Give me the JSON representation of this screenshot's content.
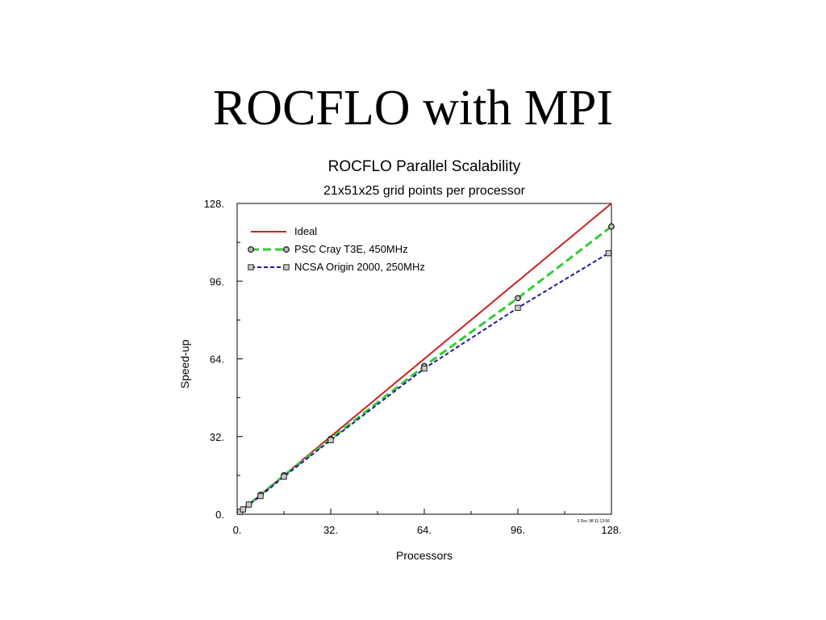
{
  "slide": {
    "title": "ROCFLO with MPI"
  },
  "colors": {
    "ideal": "#cc2222",
    "cray": "#33cc33",
    "origin": "#1a1aa0"
  },
  "chart_data": {
    "type": "line",
    "title": "ROCFLO Parallel Scalability",
    "subtitle": "21x51x25 grid points per processor",
    "xlabel": "Processors",
    "ylabel": "Speed-up",
    "xlim": [
      0,
      128
    ],
    "ylim": [
      0,
      128
    ],
    "x_ticks": [
      "0.",
      "32.",
      "64.",
      "96.",
      "128."
    ],
    "y_ticks": [
      "0.",
      "32.",
      "64.",
      "96.",
      "128."
    ],
    "timestamp": "3 Dec 98 11:13:56",
    "legend_position": "top-left",
    "series": [
      {
        "name": "Ideal",
        "style": "solid",
        "marker": "none",
        "x": [
          0,
          128
        ],
        "y": [
          0,
          128
        ]
      },
      {
        "name": "PSC Cray T3E, 450MHz",
        "style": "long-dash",
        "marker": "circle",
        "x": [
          1,
          2,
          4,
          8,
          16,
          32,
          64,
          96,
          128
        ],
        "y": [
          1,
          2,
          4,
          8,
          16,
          31,
          61,
          89,
          118.5
        ]
      },
      {
        "name": "NCSA Origin 2000, 250MHz",
        "style": "short-dash",
        "marker": "square",
        "x": [
          1,
          2,
          4,
          8,
          16,
          32,
          64,
          96,
          127
        ],
        "y": [
          1,
          2,
          4,
          7.5,
          15.5,
          30.5,
          60,
          85,
          107.5
        ]
      }
    ]
  }
}
